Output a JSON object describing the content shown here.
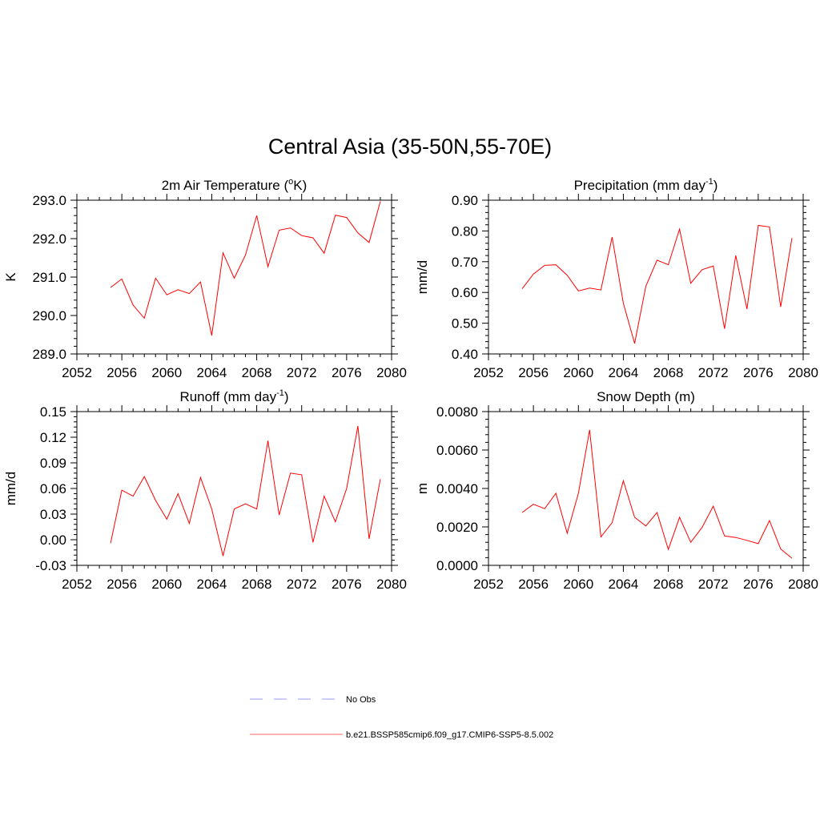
{
  "title": "Central Asia (35-50N,55-70E)",
  "legend": [
    {
      "label": "No Obs",
      "color": "#9999ff",
      "style": "dashed"
    },
    {
      "label": "b.e21.BSSP585cmip6.f09_g17.CMIP6-SSP5-8.5.002",
      "color": "#ff6666",
      "style": "solid"
    }
  ],
  "chart_data": [
    {
      "type": "line",
      "title": "2m Air Temperature (",
      "title_sup": "o",
      "title_after": "K)",
      "ylabel": "K",
      "xlim": [
        2052,
        2080
      ],
      "ylim": [
        289.0,
        293.0
      ],
      "xticks": [
        "2052",
        "2056",
        "2060",
        "2064",
        "2068",
        "2072",
        "2076",
        "2080"
      ],
      "yticks": [
        "289.0",
        "290.0",
        "291.0",
        "292.0",
        "293.0"
      ],
      "x": [
        2055,
        2056,
        2057,
        2058,
        2059,
        2060,
        2061,
        2062,
        2063,
        2064,
        2065,
        2066,
        2067,
        2068,
        2069,
        2070,
        2071,
        2072,
        2073,
        2074,
        2075,
        2076,
        2077,
        2078,
        2079
      ],
      "series": [
        {
          "color": "#ff0000",
          "values": [
            290.73,
            290.95,
            290.27,
            289.93,
            290.97,
            290.54,
            290.67,
            290.57,
            290.87,
            289.48,
            291.63,
            290.97,
            291.57,
            292.6,
            291.27,
            292.22,
            292.28,
            292.08,
            292.02,
            291.62,
            292.61,
            292.55,
            292.15,
            291.9,
            292.97
          ]
        }
      ]
    },
    {
      "type": "line",
      "title": "Precipitation (mm day",
      "title_sup": "-1",
      "title_after": ")",
      "ylabel": "mm/d",
      "xlim": [
        2052,
        2080
      ],
      "ylim": [
        0.4,
        0.9
      ],
      "xticks": [
        "2052",
        "2056",
        "2060",
        "2064",
        "2068",
        "2072",
        "2076",
        "2080"
      ],
      "yticks": [
        "0.40",
        "0.50",
        "0.60",
        "0.70",
        "0.80",
        "0.90"
      ],
      "x": [
        2055,
        2056,
        2057,
        2058,
        2059,
        2060,
        2061,
        2062,
        2063,
        2064,
        2065,
        2066,
        2067,
        2068,
        2069,
        2070,
        2071,
        2072,
        2073,
        2074,
        2075,
        2076,
        2077,
        2078,
        2079
      ],
      "series": [
        {
          "color": "#ff0000",
          "values": [
            0.612,
            0.66,
            0.688,
            0.69,
            0.656,
            0.605,
            0.614,
            0.608,
            0.78,
            0.565,
            0.434,
            0.62,
            0.705,
            0.69,
            0.806,
            0.63,
            0.674,
            0.686,
            0.482,
            0.72,
            0.546,
            0.818,
            0.813,
            0.553,
            0.777
          ]
        }
      ]
    },
    {
      "type": "line",
      "title": "Runoff (mm day",
      "title_sup": "-1",
      "title_after": ")",
      "ylabel": "mm/d",
      "xlim": [
        2052,
        2080
      ],
      "ylim": [
        -0.03,
        0.15
      ],
      "xticks": [
        "2052",
        "2056",
        "2060",
        "2064",
        "2068",
        "2072",
        "2076",
        "2080"
      ],
      "yticks": [
        "-0.03",
        "0.00",
        "0.03",
        "0.06",
        "0.09",
        "0.12",
        "0.15"
      ],
      "x": [
        2055,
        2056,
        2057,
        2058,
        2059,
        2060,
        2061,
        2062,
        2063,
        2064,
        2065,
        2066,
        2067,
        2068,
        2069,
        2070,
        2071,
        2072,
        2073,
        2074,
        2075,
        2076,
        2077,
        2078,
        2079
      ],
      "series": [
        {
          "color": "#ff0000",
          "values": [
            -0.004,
            0.058,
            0.051,
            0.074,
            0.046,
            0.024,
            0.054,
            0.019,
            0.073,
            0.036,
            -0.019,
            0.036,
            0.042,
            0.036,
            0.116,
            0.029,
            0.078,
            0.076,
            -0.003,
            0.051,
            0.021,
            0.06,
            0.133,
            0.001,
            0.071
          ]
        }
      ]
    },
    {
      "type": "line",
      "title": "Snow Depth (m)",
      "title_sup": "",
      "title_after": "",
      "ylabel": "m",
      "xlim": [
        2052,
        2080
      ],
      "ylim": [
        0.0,
        0.008
      ],
      "xticks": [
        "2052",
        "2056",
        "2060",
        "2064",
        "2068",
        "2072",
        "2076",
        "2080"
      ],
      "yticks": [
        "0.0000",
        "0.0020",
        "0.0040",
        "0.0060",
        "0.0080"
      ],
      "x": [
        2055,
        2056,
        2057,
        2058,
        2059,
        2060,
        2061,
        2062,
        2063,
        2064,
        2065,
        2066,
        2067,
        2068,
        2069,
        2070,
        2071,
        2072,
        2073,
        2074,
        2075,
        2076,
        2077,
        2078,
        2079
      ],
      "series": [
        {
          "color": "#ff0000",
          "values": [
            0.00275,
            0.00318,
            0.00295,
            0.00375,
            0.00167,
            0.00375,
            0.00705,
            0.00148,
            0.00222,
            0.0044,
            0.0025,
            0.00205,
            0.00275,
            0.00083,
            0.0025,
            0.0012,
            0.00197,
            0.00308,
            0.00153,
            0.00145,
            0.0013,
            0.00113,
            0.00233,
            0.00085,
            0.00037
          ]
        }
      ]
    }
  ]
}
